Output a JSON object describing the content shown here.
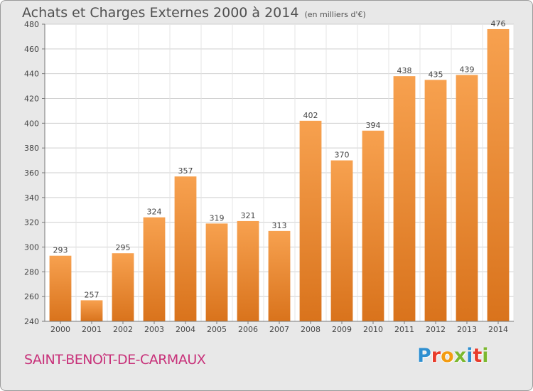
{
  "header": {
    "title": "Achats et Charges Externes 2000 à 2014",
    "unit": "(en milliers d'€)"
  },
  "footer": {
    "commune": "SAINT-BENOîT-DE-CARMAUX",
    "logo_text": "Proxiti",
    "logo_colors": [
      "#2f8fd0",
      "#e83c2c",
      "#f39c12",
      "#7cb82f",
      "#2f8fd0",
      "#e83c2c",
      "#7cb82f"
    ]
  },
  "chart_data": {
    "type": "bar",
    "title": "Achats et Charges Externes 2000 à 2014",
    "subtitle": "(en milliers d'€)",
    "xlabel": "",
    "ylabel": "",
    "categories": [
      "2000",
      "2001",
      "2002",
      "2003",
      "2004",
      "2005",
      "2006",
      "2007",
      "2008",
      "2009",
      "2010",
      "2011",
      "2012",
      "2013",
      "2014"
    ],
    "values": [
      293,
      257,
      295,
      324,
      357,
      319,
      321,
      313,
      402,
      370,
      394,
      438,
      435,
      439,
      476
    ],
    "ylim": [
      240,
      480
    ],
    "yticks": [
      240,
      260,
      280,
      300,
      320,
      340,
      360,
      380,
      400,
      420,
      440,
      460,
      480
    ],
    "grid": true,
    "bar_color_top": "#f7a14f",
    "bar_color_bottom": "#d9731c",
    "show_data_labels": true
  }
}
